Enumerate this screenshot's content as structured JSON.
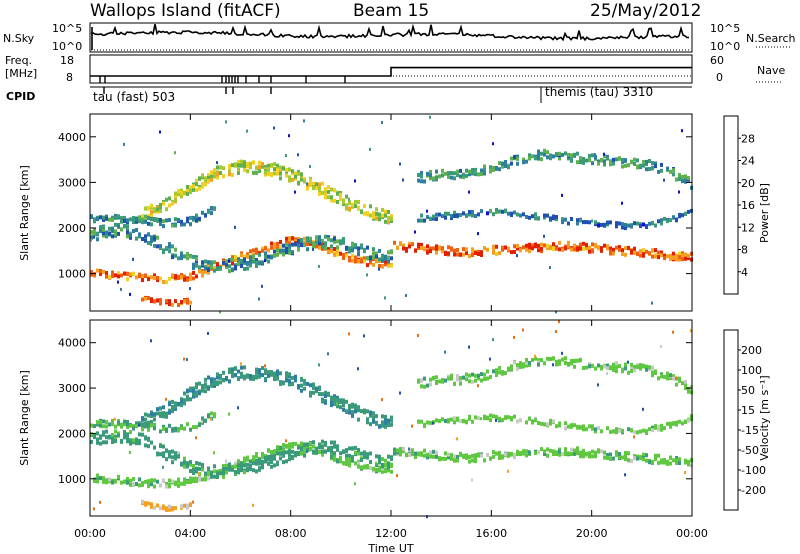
{
  "header": {
    "station": "Wallops Island (fitACF)",
    "beam": "Beam 15",
    "date": "25/May/2012"
  },
  "summary": {
    "nsky_label": "N.Sky",
    "nsky_ticks": [
      "10^5",
      "10^0"
    ],
    "nsearch_label": "N.Search",
    "nsearch_ticks": [
      "10^5",
      "10^0"
    ],
    "freq_label_1": "Freq.",
    "freq_label_2": "[MHz]",
    "freq_ticks": [
      "18",
      "8"
    ],
    "nave_label": "Nave",
    "nave_ticks": [
      "60",
      "0"
    ],
    "cpid_label": "CPID",
    "cpid_modes": [
      "tau (fast) 503",
      "themis (tau) 3310"
    ]
  },
  "colors": {
    "power_scale": [
      "#1010d0",
      "#2050b0",
      "#2e7ea0",
      "#3a9a7a",
      "#5fb04f",
      "#a8c832",
      "#f0d020",
      "#f5a020",
      "#f06010",
      "#e02000"
    ],
    "velocity_scale": [
      "#1010d0",
      "#2050b0",
      "#2e7ea0",
      "#3a9a7a",
      "#5fc840",
      "#c8c8c8",
      "#c8c8c8",
      "#f5a020",
      "#f07010",
      "#e02000"
    ]
  },
  "chart_data": [
    {
      "type": "heatmap",
      "name": "power",
      "x_unit": "hours UT",
      "xlim": [
        0,
        24
      ],
      "ylim": [
        180,
        4500
      ],
      "ylabel": "Slant Range [km]",
      "yticks": [
        "1000",
        "2000",
        "3000",
        "4000"
      ],
      "xticks": [
        "00:00",
        "04:00",
        "08:00",
        "12:00",
        "16:00",
        "20:00",
        "00:00"
      ],
      "xlabel": "Time UT",
      "colorbar_label": "Power [dB]",
      "colorbar_ticks": [
        "4",
        "8",
        "12",
        "16",
        "20",
        "24",
        "28"
      ],
      "cmin": 0,
      "cmax": 32,
      "bands": [
        {
          "t": [
            0,
            1,
            2,
            3,
            4,
            5,
            6,
            7,
            8,
            9,
            10,
            11,
            12
          ],
          "r": [
            1050,
            1020,
            960,
            930,
            980,
            1200,
            1420,
            1600,
            1780,
            1700,
            1450,
            1300,
            1250
          ],
          "w": 150,
          "p": 26
        },
        {
          "t": [
            12.05,
            13,
            14,
            15,
            16,
            17,
            18,
            19,
            20,
            21,
            22,
            23,
            24
          ],
          "r": [
            1650,
            1600,
            1550,
            1500,
            1550,
            1580,
            1620,
            1650,
            1600,
            1550,
            1500,
            1450,
            1400
          ],
          "w": 170,
          "p": 27
        },
        {
          "t": [
            0,
            1,
            2,
            3,
            4,
            5,
            6,
            7,
            8,
            9,
            10,
            11,
            12
          ],
          "r": [
            1900,
            2000,
            1900,
            1600,
            1300,
            1200,
            1250,
            1400,
            1600,
            1750,
            1700,
            1500,
            1400
          ],
          "w": 260,
          "p": 10
        },
        {
          "t": [
            2,
            3,
            4,
            5,
            6,
            7,
            8,
            9,
            10,
            11,
            12
          ],
          "r": [
            2300,
            2550,
            2950,
            3250,
            3380,
            3350,
            3200,
            2950,
            2650,
            2400,
            2250
          ],
          "w": 280,
          "p": 18
        },
        {
          "t": [
            0,
            1,
            2,
            3,
            4,
            5
          ],
          "r": [
            2250,
            2250,
            2200,
            2150,
            2200,
            2500
          ],
          "w": 150,
          "p": 9
        },
        {
          "t": [
            13,
            14,
            15,
            16,
            17,
            18,
            19,
            20,
            21,
            22,
            23,
            24
          ],
          "r": [
            3150,
            3200,
            3250,
            3350,
            3550,
            3650,
            3600,
            3550,
            3500,
            3450,
            3300,
            3000
          ],
          "w": 200,
          "p": 11
        },
        {
          "t": [
            13,
            14,
            15,
            16,
            17,
            18,
            19,
            20,
            21,
            22,
            23,
            24
          ],
          "r": [
            2250,
            2300,
            2350,
            2400,
            2350,
            2300,
            2200,
            2150,
            2100,
            2100,
            2200,
            2400
          ],
          "w": 120,
          "p": 8
        },
        {
          "t": [
            2,
            2.5,
            3,
            3.5,
            4
          ],
          "r": [
            500,
            450,
            400,
            400,
            450
          ],
          "w": 90,
          "p": 28
        }
      ]
    },
    {
      "type": "heatmap",
      "name": "velocity",
      "x_unit": "hours UT",
      "xlim": [
        0,
        24
      ],
      "ylim": [
        180,
        4500
      ],
      "ylabel": "Slant Range [km]",
      "yticks": [
        "1000",
        "2000",
        "3000",
        "4000"
      ],
      "xticks": [
        "00:00",
        "04:00",
        "08:00",
        "12:00",
        "16:00",
        "20:00",
        "00:00"
      ],
      "xlabel": "Time UT",
      "colorbar_label": "Velocity [m s⁻¹]",
      "colorbar_ticks": [
        "200",
        "100",
        "50",
        "15",
        "-15",
        "-50",
        "-100",
        "-200"
      ],
      "bands": [
        {
          "t": [
            0,
            1,
            2,
            3,
            4,
            5,
            6,
            7,
            8,
            9,
            10,
            11,
            12
          ],
          "r": [
            1050,
            1020,
            960,
            930,
            980,
            1200,
            1420,
            1600,
            1780,
            1700,
            1450,
            1300,
            1250
          ],
          "w": 150,
          "v": 0
        },
        {
          "t": [
            12.05,
            13,
            14,
            15,
            16,
            17,
            18,
            19,
            20,
            21,
            22,
            23,
            24
          ],
          "r": [
            1650,
            1600,
            1550,
            1500,
            1550,
            1580,
            1620,
            1650,
            1600,
            1550,
            1500,
            1450,
            1400
          ],
          "w": 170,
          "v": 0
        },
        {
          "t": [
            0,
            1,
            2,
            3,
            4,
            5,
            6,
            7,
            8,
            9,
            10,
            11,
            12
          ],
          "r": [
            1900,
            2000,
            1900,
            1600,
            1300,
            1200,
            1250,
            1400,
            1600,
            1750,
            1700,
            1500,
            1400
          ],
          "w": 260,
          "v": 30
        },
        {
          "t": [
            2,
            3,
            4,
            5,
            6,
            7,
            8,
            9,
            10,
            11,
            12
          ],
          "r": [
            2300,
            2550,
            2950,
            3250,
            3380,
            3350,
            3200,
            2950,
            2650,
            2400,
            2250
          ],
          "w": 280,
          "v": 40
        },
        {
          "t": [
            0,
            1,
            2,
            3,
            4,
            5
          ],
          "r": [
            2250,
            2250,
            2200,
            2150,
            2200,
            2500
          ],
          "w": 150,
          "v": 20
        },
        {
          "t": [
            13,
            14,
            15,
            16,
            17,
            18,
            19,
            20,
            21,
            22,
            23,
            24
          ],
          "r": [
            3150,
            3200,
            3250,
            3350,
            3550,
            3650,
            3600,
            3550,
            3500,
            3450,
            3300,
            3000
          ],
          "w": 200,
          "v": 0
        },
        {
          "t": [
            13,
            14,
            15,
            16,
            17,
            18,
            19,
            20,
            21,
            22,
            23,
            24
          ],
          "r": [
            2250,
            2300,
            2350,
            2400,
            2350,
            2300,
            2200,
            2150,
            2100,
            2100,
            2200,
            2400
          ],
          "w": 120,
          "v": 0
        },
        {
          "t": [
            2,
            2.5,
            3,
            3.5,
            4
          ],
          "r": [
            500,
            450,
            400,
            400,
            450
          ],
          "w": 90,
          "v": -60
        }
      ]
    },
    {
      "type": "line",
      "name": "frequency",
      "x": [
        0,
        12,
        12,
        24
      ],
      "y": [
        10.5,
        10.5,
        13.5,
        13.5
      ],
      "ylim": [
        8,
        18
      ]
    },
    {
      "type": "line",
      "name": "nave",
      "x": [
        0,
        12,
        12,
        24
      ],
      "y": [
        15,
        15,
        15,
        15
      ],
      "ylim": [
        0,
        60
      ]
    }
  ]
}
